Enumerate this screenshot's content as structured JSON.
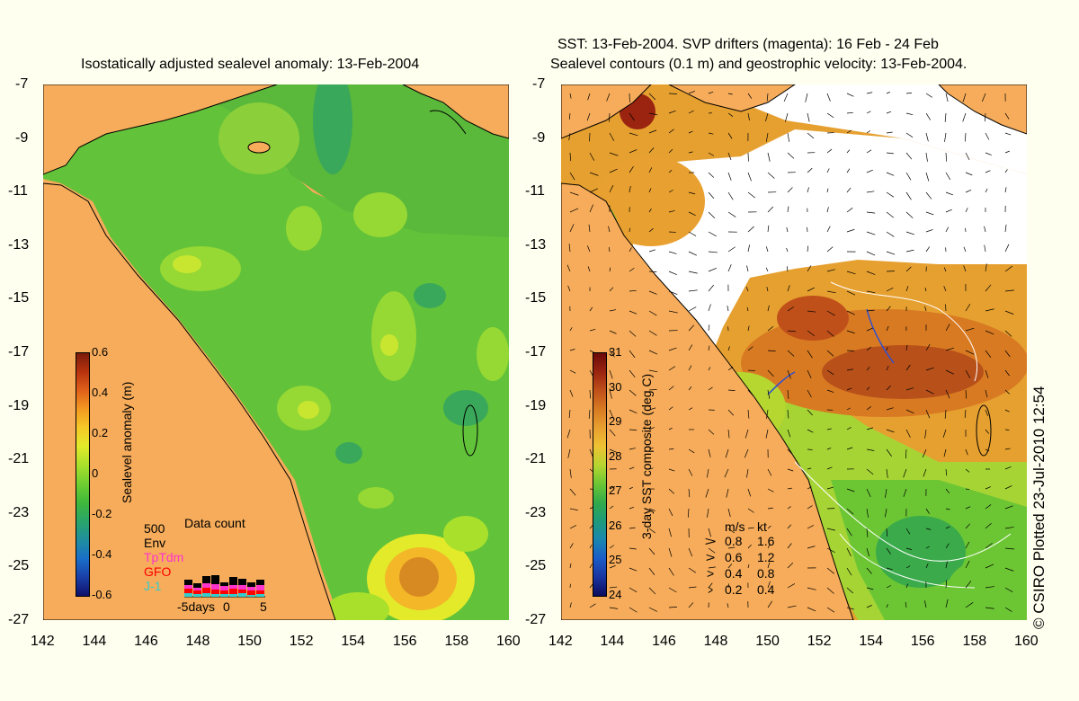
{
  "left_map": {
    "title": "Isostatically adjusted sealevel anomaly: 13-Feb-2004",
    "colorbar": {
      "label": "Sealevel anomaly (m)",
      "ticks": [
        "0.6",
        "0.4",
        "0.2",
        "0",
        "-0.2",
        "-0.4",
        "-0.6"
      ],
      "colors": [
        "#7a1a0a",
        "#b8330e",
        "#e0601a",
        "#f39a20",
        "#f6c928",
        "#e2ea2a",
        "#a9e02c",
        "#6fcf30",
        "#3fb83a",
        "#2aa56a",
        "#1f8e9e",
        "#1a6fc8",
        "#1a3fa8",
        "#10106a"
      ]
    },
    "data_count": {
      "title": "Data count",
      "scale_value": "500",
      "sensors": [
        {
          "name": "Env",
          "color": "#000000"
        },
        {
          "name": "TpTdm",
          "color": "#ff33cc"
        },
        {
          "name": "GFO",
          "color": "#ff0000"
        },
        {
          "name": "J-1",
          "color": "#33cccc"
        }
      ],
      "axis_labels": [
        "-5days",
        "0",
        "5"
      ]
    }
  },
  "right_map": {
    "title_line1": "SST: 13-Feb-2004. SVP drifters (magenta): 16 Feb - 24 Feb",
    "title_line2": "Sealevel contours (0.1 m) and geostrophic velocity: 13-Feb-2004.",
    "colorbar": {
      "label": "3-day SST composite (deg C)",
      "ticks": [
        "31",
        "30",
        "29",
        "28",
        "27",
        "26",
        "25",
        "24"
      ],
      "colors": [
        "#6a0a08",
        "#9a2410",
        "#c0501a",
        "#d87a22",
        "#e8a030",
        "#eec232",
        "#b6d630",
        "#6cc634",
        "#32aa4a",
        "#1e9a7a",
        "#1a86b0",
        "#1a5cc8",
        "#1a34a0",
        "#0c0c5e"
      ]
    },
    "velocity_legend": {
      "header_ms": "m/s",
      "header_kt": "kt",
      "rows": [
        {
          "ms": "0.8",
          "kt": "1.6"
        },
        {
          "ms": "0.6",
          "kt": "1.2"
        },
        {
          "ms": "0.4",
          "kt": "0.8"
        },
        {
          "ms": "0.2",
          "kt": "0.4"
        }
      ]
    }
  },
  "axes": {
    "x_ticks": [
      "142",
      "144",
      "146",
      "148",
      "150",
      "152",
      "154",
      "156",
      "158",
      "160"
    ],
    "y_ticks": [
      "-7",
      "-9",
      "-11",
      "-13",
      "-15",
      "-17",
      "-19",
      "-21",
      "-23",
      "-25",
      "-27"
    ]
  },
  "credit": "© CSIRO Plotted 23-Jul-2010 12:54",
  "colors": {
    "land": "#f6ac5a",
    "background": "#fffff0",
    "cloud": "#ffffff"
  }
}
